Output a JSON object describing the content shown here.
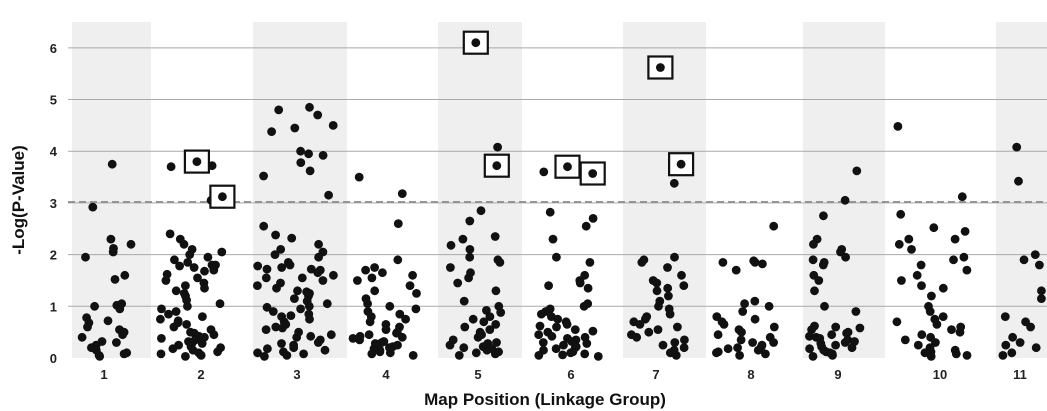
{
  "chart_data": {
    "type": "scatter",
    "title": "",
    "xlabel": "Map Position (Linkage Group)",
    "ylabel": "-Log(P-Value)",
    "ylim": [
      0,
      6.5
    ],
    "yticks": [
      0,
      1,
      2,
      3,
      4,
      5,
      6
    ],
    "threshold": 3.02,
    "threshold_style": "dashed gray line",
    "grid": "horizontal gridlines",
    "band_style": "alternating light gray shading per linkage group",
    "marker_color": "#111111",
    "highlight_style": "square box around significant points",
    "groups": [
      {
        "label": "1",
        "highlighted": [],
        "points": [
          3.75,
          2.92,
          2.3,
          2.2,
          2.12,
          2.05,
          1.95,
          1.6,
          1.52,
          1.05,
          1.02,
          1.0,
          0.95,
          0.78,
          0.72,
          0.68,
          0.6,
          0.55,
          0.5,
          0.45,
          0.4,
          0.32,
          0.3,
          0.25,
          0.2,
          0.15,
          0.1,
          0.08,
          0.05,
          0.03
        ]
      },
      {
        "label": "2",
        "highlighted": [
          3.8,
          3.12
        ],
        "points": [
          3.72,
          3.7,
          2.4,
          2.3,
          2.2,
          2.1,
          2.05,
          2.0,
          1.95,
          1.9,
          1.85,
          1.8,
          1.8,
          1.78,
          1.75,
          1.7,
          1.68,
          1.62,
          1.55,
          1.5,
          1.45,
          1.4,
          1.35,
          1.3,
          1.25,
          1.2,
          1.12,
          1.05,
          1.0,
          0.95,
          0.9,
          0.85,
          0.8,
          0.75,
          0.72,
          0.68,
          0.65,
          0.6,
          0.55,
          0.5,
          0.48,
          0.45,
          0.42,
          0.4,
          0.38,
          0.35,
          0.32,
          0.3,
          0.28,
          0.25,
          0.22,
          0.2,
          0.18,
          0.15,
          0.12,
          0.1,
          0.08,
          0.06,
          0.05,
          0.03,
          3.05
        ]
      },
      {
        "label": "3",
        "highlighted": [],
        "points": [
          4.85,
          4.8,
          4.7,
          4.5,
          4.45,
          4.38,
          4.0,
          3.95,
          3.92,
          3.78,
          3.62,
          3.52,
          3.15,
          2.55,
          2.38,
          2.32,
          2.2,
          2.1,
          2.05,
          2.0,
          1.95,
          1.85,
          1.8,
          1.78,
          1.75,
          1.72,
          1.7,
          1.65,
          1.6,
          1.55,
          1.5,
          1.45,
          1.4,
          1.35,
          1.3,
          1.28,
          1.25,
          1.2,
          1.15,
          1.1,
          1.05,
          1.0,
          0.98,
          0.95,
          0.9,
          0.85,
          0.82,
          0.8,
          0.75,
          0.7,
          0.65,
          0.6,
          0.58,
          0.55,
          0.5,
          0.45,
          0.42,
          0.4,
          0.35,
          0.3,
          0.28,
          0.25,
          0.2,
          0.18,
          0.15,
          0.12,
          0.1,
          0.08,
          0.05,
          0.03,
          1.72,
          1.55
        ]
      },
      {
        "label": "4",
        "highlighted": [],
        "points": [
          3.5,
          3.18,
          2.6,
          1.9,
          1.75,
          1.7,
          1.65,
          1.6,
          1.55,
          1.5,
          1.4,
          1.3,
          1.25,
          1.15,
          1.05,
          1.0,
          0.95,
          0.9,
          0.85,
          0.8,
          0.75,
          0.7,
          0.65,
          0.6,
          0.55,
          0.5,
          0.48,
          0.45,
          0.42,
          0.4,
          0.38,
          0.35,
          0.32,
          0.3,
          0.28,
          0.25,
          0.22,
          0.2,
          0.18,
          0.15,
          0.12,
          0.1,
          0.08,
          0.05
        ]
      },
      {
        "label": "5",
        "highlighted": [
          6.1,
          3.72
        ],
        "points": [
          4.08,
          2.85,
          2.65,
          2.35,
          2.3,
          2.18,
          2.1,
          1.95,
          1.9,
          1.85,
          1.75,
          1.65,
          1.55,
          1.45,
          1.3,
          1.1,
          1.0,
          0.92,
          0.88,
          0.8,
          0.75,
          0.7,
          0.65,
          0.6,
          0.55,
          0.5,
          0.45,
          0.4,
          0.35,
          0.3,
          0.28,
          0.25,
          0.22,
          0.2,
          0.18,
          0.15,
          0.12,
          0.1,
          0.08,
          0.05
        ]
      },
      {
        "label": "6",
        "highlighted": [
          3.7,
          3.57
        ],
        "points": [
          3.6,
          2.82,
          2.7,
          2.55,
          2.3,
          1.95,
          1.85,
          1.6,
          1.5,
          1.45,
          1.4,
          1.35,
          1.05,
          1.0,
          0.95,
          0.9,
          0.85,
          0.8,
          0.75,
          0.7,
          0.65,
          0.62,
          0.6,
          0.55,
          0.52,
          0.5,
          0.45,
          0.42,
          0.4,
          0.38,
          0.35,
          0.32,
          0.3,
          0.28,
          0.25,
          0.22,
          0.2,
          0.18,
          0.15,
          0.12,
          0.1,
          0.08,
          0.06,
          0.05,
          0.03
        ]
      },
      {
        "label": "7",
        "highlighted": [
          5.62,
          3.75
        ],
        "points": [
          3.38,
          1.95,
          1.9,
          1.85,
          1.75,
          1.6,
          1.5,
          1.45,
          1.4,
          1.35,
          1.3,
          1.2,
          1.1,
          1.0,
          0.95,
          0.85,
          0.8,
          0.75,
          0.7,
          0.65,
          0.6,
          0.55,
          0.5,
          0.45,
          0.4,
          0.35,
          0.3,
          0.25,
          0.2,
          0.15,
          0.1,
          0.05
        ]
      },
      {
        "label": "8",
        "highlighted": [],
        "points": [
          2.55,
          1.88,
          1.85,
          1.85,
          1.82,
          1.7,
          1.1,
          1.05,
          1.0,
          0.9,
          0.8,
          0.75,
          0.7,
          0.65,
          0.6,
          0.55,
          0.5,
          0.45,
          0.4,
          0.35,
          0.3,
          0.3,
          0.25,
          0.22,
          0.2,
          0.18,
          0.15,
          0.12,
          0.1,
          0.08,
          0.05
        ]
      },
      {
        "label": "9",
        "highlighted": [],
        "points": [
          3.62,
          3.05,
          2.75,
          2.3,
          2.2,
          2.1,
          2.05,
          1.95,
          1.9,
          1.85,
          1.8,
          1.6,
          1.5,
          1.3,
          1.0,
          0.9,
          0.62,
          0.6,
          0.58,
          0.55,
          0.5,
          0.48,
          0.45,
          0.42,
          0.4,
          0.38,
          0.35,
          0.32,
          0.3,
          0.28,
          0.25,
          0.22,
          0.2,
          0.18,
          0.15,
          0.12,
          0.1,
          0.08,
          0.05,
          0.03
        ]
      },
      {
        "label": "10",
        "highlighted": [],
        "points": [
          4.48,
          3.12,
          2.78,
          2.52,
          2.45,
          2.3,
          2.3,
          2.2,
          2.1,
          1.95,
          1.9,
          1.8,
          1.7,
          1.6,
          1.5,
          1.4,
          1.35,
          1.2,
          1.0,
          0.9,
          0.8,
          0.75,
          0.7,
          0.65,
          0.6,
          0.55,
          0.5,
          0.45,
          0.4,
          0.35,
          0.3,
          0.25,
          0.2,
          0.15,
          0.12,
          0.1,
          0.08,
          0.05,
          0.03
        ]
      },
      {
        "label": "11",
        "highlighted": [],
        "points": [
          4.08,
          3.42,
          2.0,
          1.9,
          1.8,
          1.3,
          1.15,
          0.8,
          0.7,
          0.6,
          0.4,
          0.3,
          0.25,
          0.2,
          0.1,
          0.05
        ]
      }
    ]
  }
}
